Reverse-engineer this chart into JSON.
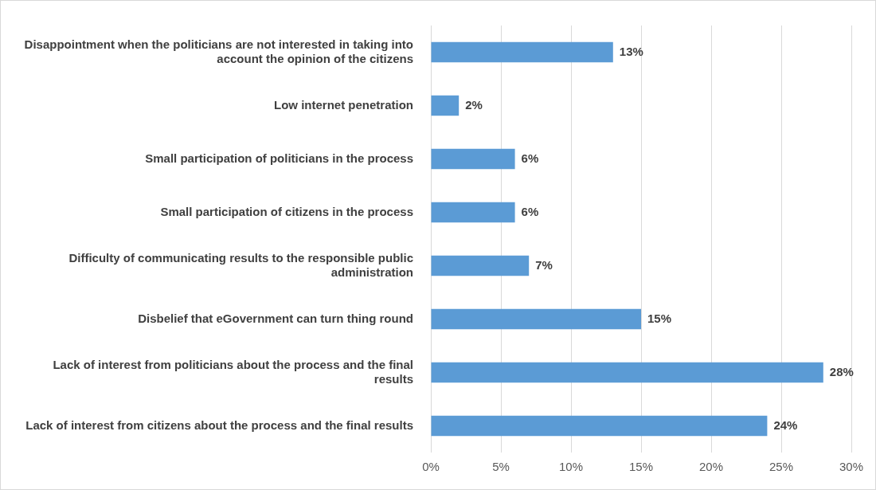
{
  "chart_data": {
    "type": "bar",
    "orientation": "horizontal",
    "categories": [
      "Disappointment when the politicians are not interested in taking into account the opinion of the citizens",
      "Low internet penetration",
      "Small participation of politicians in the process",
      "Small participation of citizens in the process",
      "Difficulty of communicating results to the responsible public administration",
      "Disbelief that eGovernment can turn thing round",
      "Lack of interest from politicians about the process and the final results",
      "Lack of interest from citizens about the process and the final results"
    ],
    "values": [
      13,
      2,
      6,
      6,
      7,
      15,
      28,
      24
    ],
    "value_labels": [
      "13%",
      "2%",
      "6%",
      "6%",
      "7%",
      "15%",
      "28%",
      "24%"
    ],
    "color": "#5b9bd5",
    "xlim": [
      0,
      30
    ],
    "xticks": [
      {
        "value": 0,
        "label": "0%"
      },
      {
        "value": 5,
        "label": "5%"
      },
      {
        "value": 10,
        "label": "10%"
      },
      {
        "value": 15,
        "label": "15%"
      },
      {
        "value": 20,
        "label": "20%"
      },
      {
        "value": 25,
        "label": "25%"
      },
      {
        "value": 30,
        "label": "30%"
      }
    ],
    "grid": "x",
    "legend": false
  }
}
